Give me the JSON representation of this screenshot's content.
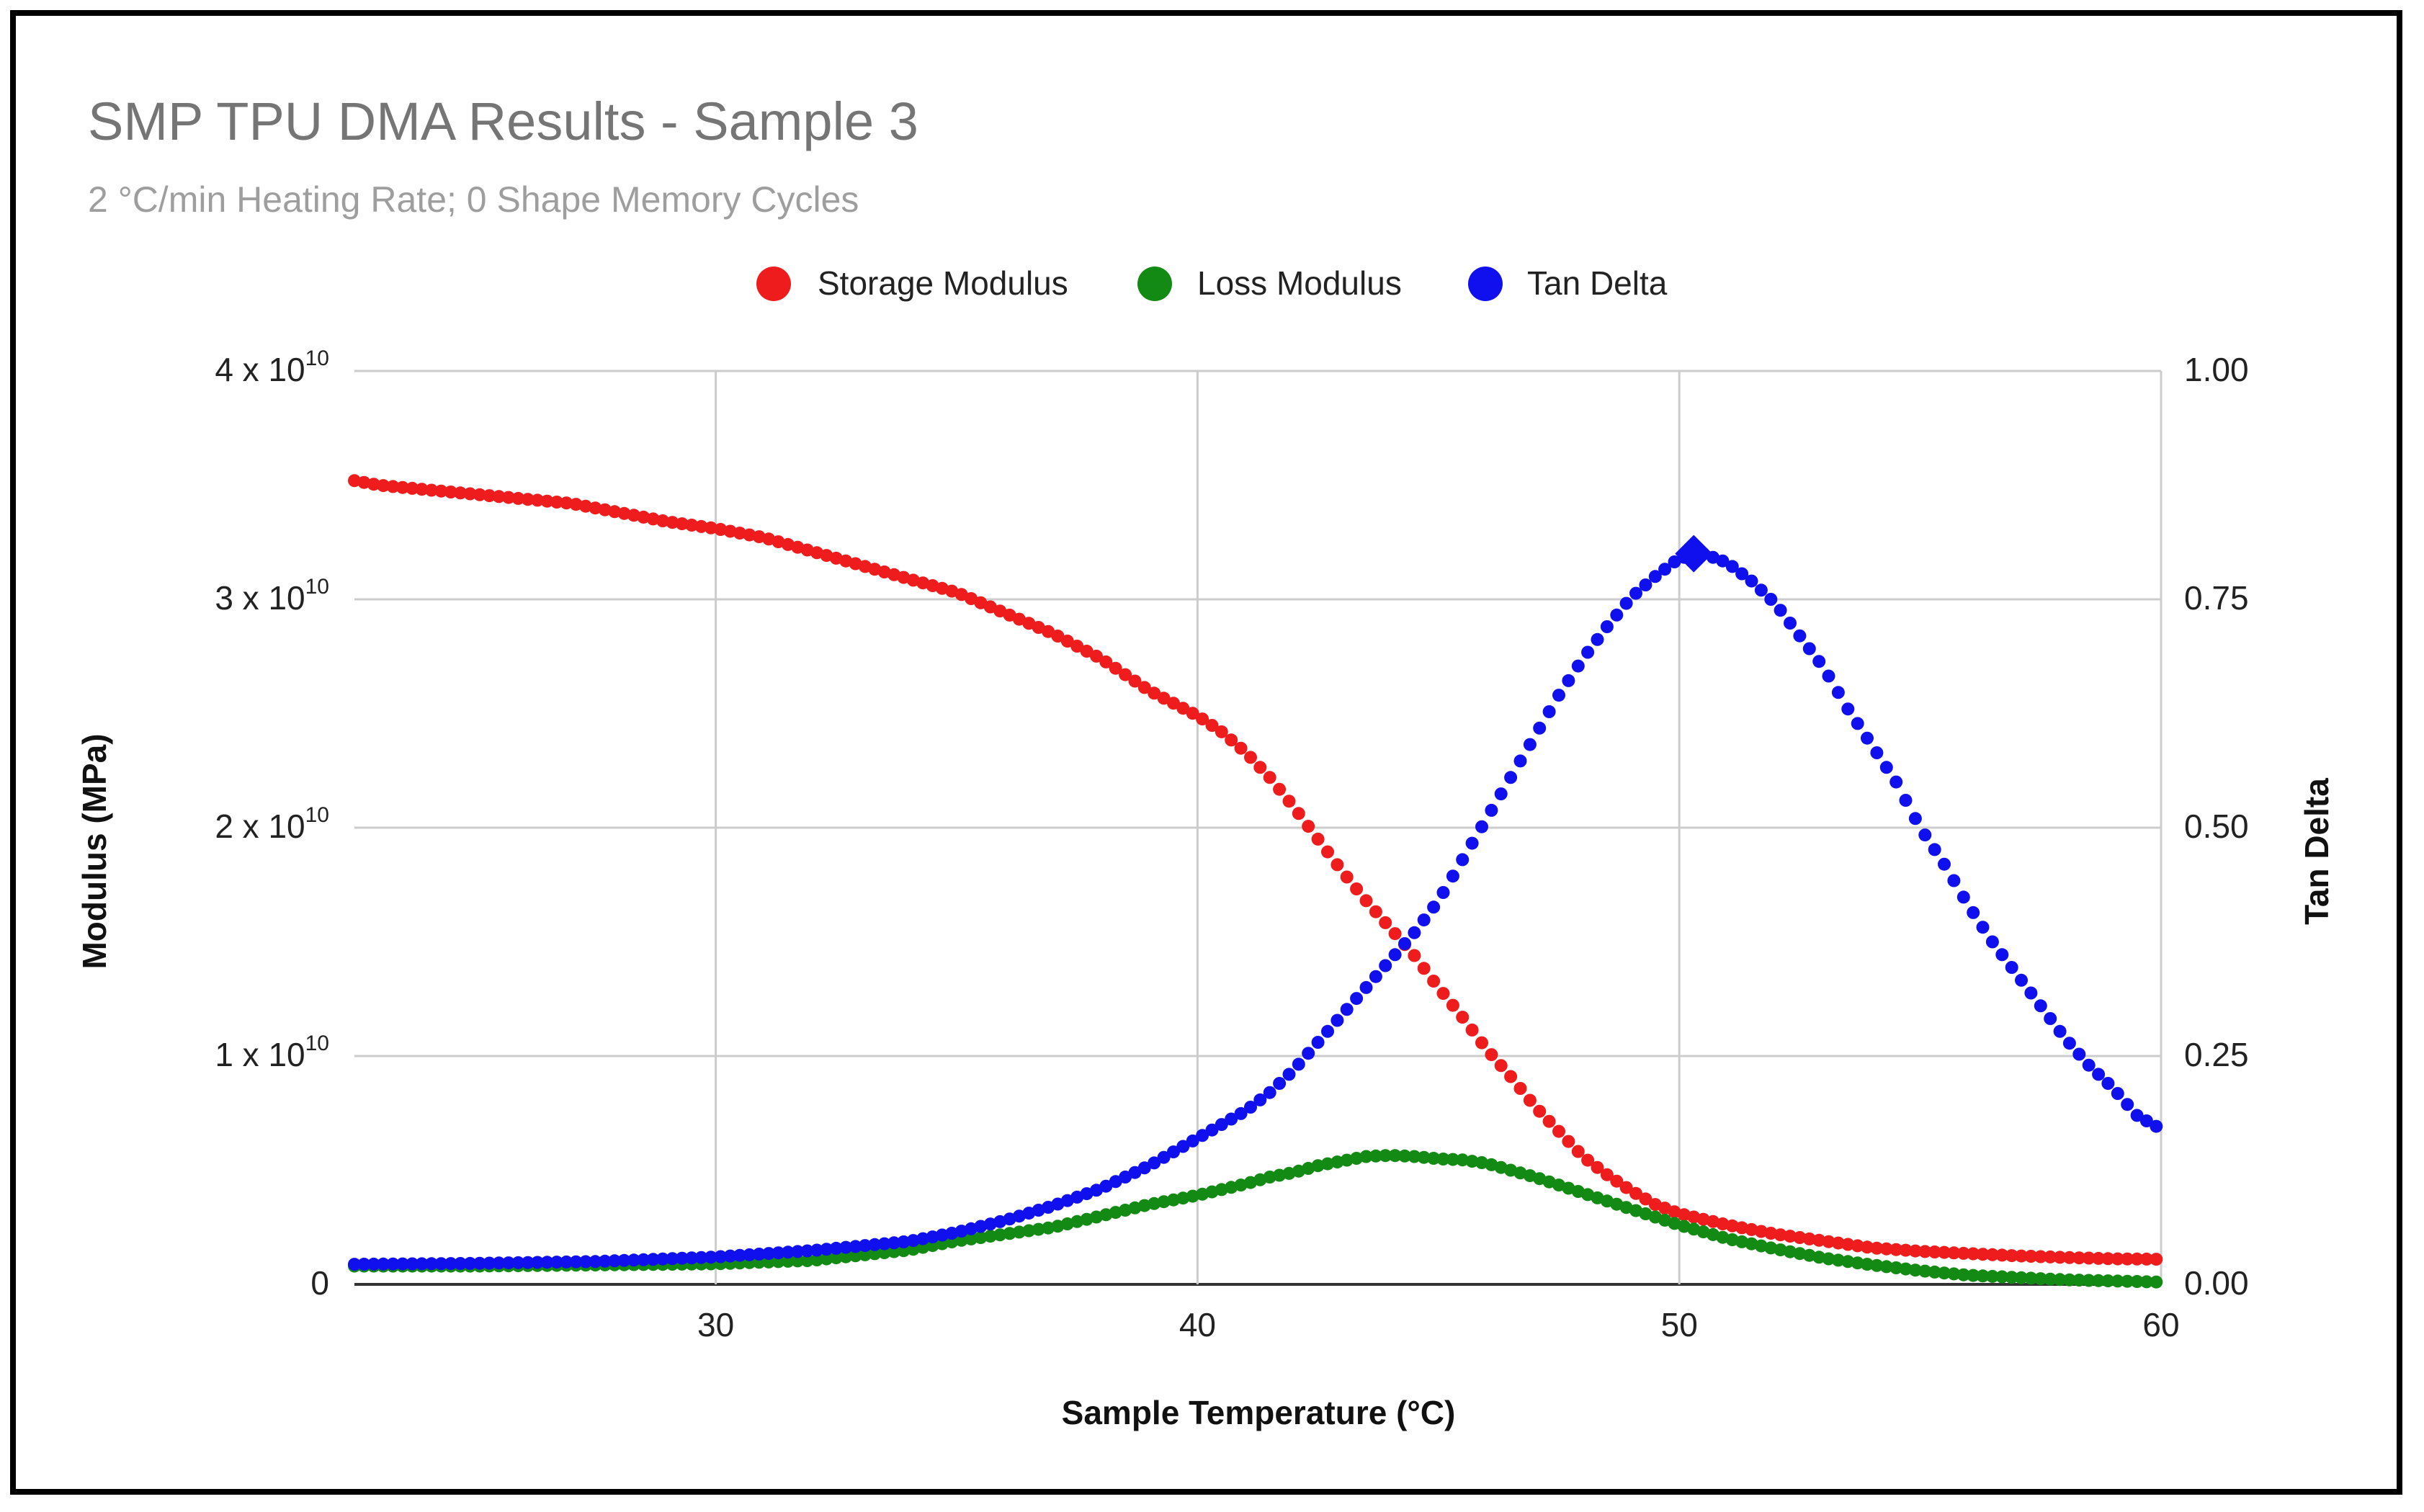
{
  "chart_data": {
    "type": "scatter",
    "title": "SMP TPU DMA Results - Sample 3",
    "subtitle": "2 °C/min Heating Rate; 0 Shape Memory Cycles",
    "xlabel": "Sample Temperature (°C)",
    "ylabel": "Modulus (MPa)",
    "y2label": "Tan Delta",
    "xlim": [
      22.5,
      60
    ],
    "ylim": [
      0,
      40000000000
    ],
    "y2lim": [
      0,
      1
    ],
    "x_ticks": [
      "30",
      "40",
      "50",
      "60"
    ],
    "y_ticks": [
      {
        "base": "0",
        "exp": ""
      },
      {
        "base": "1 x 10",
        "exp": "10"
      },
      {
        "base": "2 x 10",
        "exp": "10"
      },
      {
        "base": "3 x 10",
        "exp": "10"
      },
      {
        "base": "4 x 10",
        "exp": "10"
      }
    ],
    "y2_ticks": [
      "0.00",
      "0.25",
      "0.50",
      "0.75",
      "1.00"
    ],
    "grid": true,
    "legend_position": "top",
    "series": [
      {
        "name": "Storage Modulus",
        "color": "#ee1c1c",
        "axis": "left",
        "points": [
          [
            22.5,
            35200000000.0
          ],
          [
            23,
            35000000000.0
          ],
          [
            24,
            34800000000.0
          ],
          [
            25,
            34600000000.0
          ],
          [
            26,
            34400000000.0
          ],
          [
            27,
            34200000000.0
          ],
          [
            28,
            33800000000.0
          ],
          [
            29,
            33400000000.0
          ],
          [
            30,
            33100000000.0
          ],
          [
            31,
            32700000000.0
          ],
          [
            32,
            32100000000.0
          ],
          [
            33,
            31500000000.0
          ],
          [
            34,
            30900000000.0
          ],
          [
            35,
            30300000000.0
          ],
          [
            36,
            29400000000.0
          ],
          [
            37,
            28500000000.0
          ],
          [
            38,
            27400000000.0
          ],
          [
            39,
            26000000000.0
          ],
          [
            40,
            24900000000.0
          ],
          [
            40.5,
            24200000000.0
          ],
          [
            41,
            23300000000.0
          ],
          [
            41.5,
            22200000000.0
          ],
          [
            42,
            20900000000.0
          ],
          [
            42.5,
            19500000000.0
          ],
          [
            43,
            18100000000.0
          ],
          [
            43.5,
            16800000000.0
          ],
          [
            44,
            15600000000.0
          ],
          [
            44.5,
            14400000000.0
          ],
          [
            45,
            13000000000.0
          ],
          [
            45.5,
            11700000000.0
          ],
          [
            46,
            10300000000.0
          ],
          [
            46.5,
            9100000000.0
          ],
          [
            47,
            7800000000.0
          ],
          [
            47.5,
            6700000000.0
          ],
          [
            48,
            5600000000.0
          ],
          [
            48.5,
            4800000000.0
          ],
          [
            49,
            4100000000.0
          ],
          [
            49.5,
            3500000000.0
          ],
          [
            50,
            3100000000.0
          ],
          [
            51,
            2600000000.0
          ],
          [
            52,
            2200000000.0
          ],
          [
            53,
            1900000000.0
          ],
          [
            54,
            1600000000.0
          ],
          [
            55,
            1450000000.0
          ],
          [
            56,
            1350000000.0
          ],
          [
            57,
            1250000000.0
          ],
          [
            58,
            1180000000.0
          ],
          [
            59,
            1120000000.0
          ],
          [
            60,
            1100000000.0
          ]
        ]
      },
      {
        "name": "Loss Modulus",
        "color": "#138a13",
        "axis": "left",
        "points": [
          [
            22.5,
            800000000.0
          ],
          [
            25,
            800000000.0
          ],
          [
            27.5,
            850000000.0
          ],
          [
            30,
            900000000.0
          ],
          [
            32,
            1050000000.0
          ],
          [
            34,
            1500000000.0
          ],
          [
            35,
            1900000000.0
          ],
          [
            36,
            2200000000.0
          ],
          [
            37,
            2500000000.0
          ],
          [
            38,
            3000000000.0
          ],
          [
            39,
            3500000000.0
          ],
          [
            40,
            3900000000.0
          ],
          [
            41,
            4400000000.0
          ],
          [
            41.5,
            4700000000.0
          ],
          [
            42,
            4900000000.0
          ],
          [
            42.5,
            5200000000.0
          ],
          [
            43,
            5400000000.0
          ],
          [
            43.5,
            5600000000.0
          ],
          [
            44,
            5650000000.0
          ],
          [
            44.5,
            5600000000.0
          ],
          [
            45,
            5500000000.0
          ],
          [
            45.5,
            5450000000.0
          ],
          [
            46,
            5300000000.0
          ],
          [
            46.5,
            5000000000.0
          ],
          [
            47,
            4700000000.0
          ],
          [
            48,
            4000000000.0
          ],
          [
            49,
            3300000000.0
          ],
          [
            50,
            2600000000.0
          ],
          [
            51,
            2000000000.0
          ],
          [
            52,
            1550000000.0
          ],
          [
            53,
            1150000000.0
          ],
          [
            54,
            850000000.0
          ],
          [
            55,
            600000000.0
          ],
          [
            56,
            400000000.0
          ],
          [
            57,
            300000000.0
          ],
          [
            58,
            200000000.0
          ],
          [
            59,
            150000000.0
          ],
          [
            60,
            100000000.0
          ]
        ]
      },
      {
        "name": "Tan Delta",
        "color": "#1010ee",
        "axis": "right",
        "points": [
          [
            22.5,
            0.022
          ],
          [
            25,
            0.023
          ],
          [
            27.5,
            0.025
          ],
          [
            30,
            0.03
          ],
          [
            32,
            0.037
          ],
          [
            34,
            0.047
          ],
          [
            35,
            0.057
          ],
          [
            36,
            0.07
          ],
          [
            37,
            0.086
          ],
          [
            38,
            0.105
          ],
          [
            39,
            0.13
          ],
          [
            40,
            0.16
          ],
          [
            40.5,
            0.175
          ],
          [
            41,
            0.19
          ],
          [
            41.5,
            0.21
          ],
          [
            42,
            0.235
          ],
          [
            42.5,
            0.265
          ],
          [
            43,
            0.295
          ],
          [
            43.5,
            0.325
          ],
          [
            44,
            0.355
          ],
          [
            44.5,
            0.385
          ],
          [
            45,
            0.42
          ],
          [
            45.5,
            0.465
          ],
          [
            46,
            0.51
          ],
          [
            46.5,
            0.555
          ],
          [
            47,
            0.6
          ],
          [
            47.5,
            0.645
          ],
          [
            48,
            0.685
          ],
          [
            48.5,
            0.72
          ],
          [
            49,
            0.752
          ],
          [
            49.5,
            0.775
          ],
          [
            50,
            0.795
          ],
          [
            50.5,
            0.8
          ],
          [
            51,
            0.79
          ],
          [
            51.5,
            0.77
          ],
          [
            52,
            0.745
          ],
          [
            52.5,
            0.71
          ],
          [
            53,
            0.675
          ],
          [
            53.5,
            0.63
          ],
          [
            54,
            0.59
          ],
          [
            54.5,
            0.55
          ],
          [
            55,
            0.5
          ],
          [
            55.5,
            0.46
          ],
          [
            56,
            0.415
          ],
          [
            56.5,
            0.375
          ],
          [
            57,
            0.34
          ],
          [
            57.5,
            0.305
          ],
          [
            58,
            0.27
          ],
          [
            58.5,
            0.24
          ],
          [
            59,
            0.215
          ],
          [
            59.5,
            0.185
          ],
          [
            60,
            0.17
          ]
        ],
        "highlight": {
          "x": 50.3,
          "y": 0.8
        }
      }
    ]
  }
}
